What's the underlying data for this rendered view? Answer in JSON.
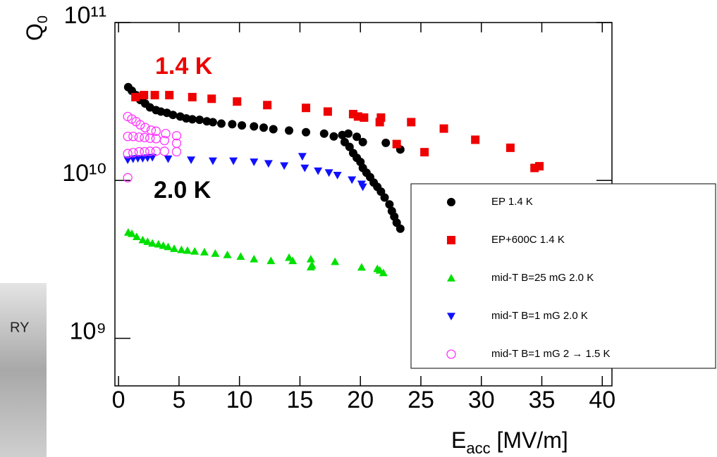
{
  "photo_text": "RY",
  "chart_data": {
    "type": "scatter",
    "x_label": {
      "main": "E",
      "sub": "acc",
      "unit": " [MV/m]"
    },
    "y_label": {
      "main": "Q",
      "sub": "0"
    },
    "annotations": [
      {
        "text": "1.4 K",
        "color": "#ee0000"
      },
      {
        "text": "2.0 K",
        "color": "#000000"
      }
    ],
    "log_y": true,
    "xlim": [
      -0.3,
      40.8
    ],
    "xticks": [
      0,
      5,
      10,
      15,
      20,
      25,
      30,
      35,
      40
    ],
    "ylim": [
      500000000,
      100000000000
    ],
    "yticks": [
      {
        "value": 1000000000,
        "label": "10⁹"
      },
      {
        "value": 10000000000,
        "label": "10¹⁰"
      },
      {
        "value": 100000000000,
        "label": "10¹¹"
      }
    ],
    "grid": false,
    "series": [
      {
        "name": "EP 1.4 K",
        "color": "#000000",
        "marker": "circle",
        "x": [
          0.8,
          1.1,
          1.45,
          1.8,
          2.2,
          2.6,
          3.1,
          3.5,
          4.0,
          4.5,
          5.1,
          5.6,
          6.1,
          6.7,
          7.3,
          7.8,
          8.5,
          9.4,
          10.2,
          11.2,
          12.0,
          12.8,
          14.1,
          15.5,
          17.0,
          17.8,
          18.5,
          19.0,
          19.7,
          20.2,
          18.7,
          19.1,
          19.4,
          19.7,
          20.0,
          20.2,
          20.5,
          20.8,
          21.1,
          21.4,
          21.7,
          22.0,
          22.4,
          22.6,
          22.8,
          23.0,
          23.3,
          22.1,
          23.3
        ],
        "values": [
          39000000000,
          37000000000,
          34700000000,
          32300000000,
          30700000000,
          29000000000,
          27900000000,
          27300000000,
          26800000000,
          26000000000,
          25400000000,
          24700000000,
          24400000000,
          24200000000,
          23700000000,
          23400000000,
          22900000000,
          22700000000,
          22300000000,
          22000000000,
          21600000000,
          21100000000,
          20700000000,
          20200000000,
          19800000000,
          19000000000,
          19400000000,
          19800000000,
          18900000000,
          17500000000,
          17500000000,
          16300000000,
          14900000000,
          13900000000,
          13100000000,
          12000000000,
          11200000000,
          10500000000,
          9700000000,
          9100000000,
          8500000000,
          7800000000,
          7050000000,
          6400000000,
          5900000000,
          5400000000,
          4950000000,
          17300000000,
          15700000000
        ]
      },
      {
        "name": "EP+600C 1.4 K",
        "color": "#ee0000",
        "marker": "square",
        "x": [
          1.4,
          2.1,
          3.0,
          4.2,
          6.1,
          7.7,
          9.8,
          12.3,
          15.5,
          17.3,
          19.4,
          19.8,
          20.3,
          21.7,
          21.6,
          24.2,
          23.0,
          26.9,
          25.3,
          29.5,
          32.4,
          34.4,
          34.8
        ],
        "values": [
          33700000000,
          34700000000,
          34700000000,
          34700000000,
          33700000000,
          32900000000,
          31600000000,
          30000000000,
          28800000000,
          27300000000,
          26300000000,
          25400000000,
          25000000000,
          25000000000,
          23400000000,
          23400000000,
          17000000000,
          21300000000,
          15100000000,
          18100000000,
          16100000000,
          12000000000,
          12300000000
        ]
      },
      {
        "name": "mid-T B=25 mG 2.0 K",
        "color": "#00e000",
        "marker": "triangle-up",
        "x": [
          0.8,
          1.1,
          1.5,
          2.0,
          2.4,
          2.8,
          3.3,
          3.7,
          4.1,
          4.6,
          5.2,
          5.7,
          6.3,
          7.1,
          8.0,
          9.0,
          10.1,
          11.2,
          12.6,
          14.1,
          14.4,
          15.9,
          16.0,
          15.9,
          17.9,
          20.1,
          21.4,
          21.6,
          21.9
        ],
        "values": [
          4690000000,
          4600000000,
          4400000000,
          4200000000,
          4100000000,
          4000000000,
          3950000000,
          3870000000,
          3800000000,
          3700000000,
          3640000000,
          3600000000,
          3560000000,
          3520000000,
          3450000000,
          3380000000,
          3300000000,
          3180000000,
          3100000000,
          3250000000,
          3100000000,
          3180000000,
          2900000000,
          2830000000,
          3060000000,
          2820000000,
          2760000000,
          2700000000,
          2600000000
        ]
      },
      {
        "name": "mid-T B=1 mG 2.0 K",
        "color": "#1010ff",
        "marker": "triangle-down",
        "x": [
          0.76,
          1.2,
          1.6,
          2.0,
          2.4,
          2.8,
          4.1,
          6.0,
          7.8,
          9.5,
          11.2,
          12.4,
          13.7,
          15.2,
          15.4,
          16.5,
          17.4,
          18.1,
          19.3,
          20.1,
          20.2
        ],
        "values": [
          13500000000,
          13700000000,
          13800000000,
          13800000000,
          13900000000,
          14000000000,
          13700000000,
          13500000000,
          13300000000,
          13300000000,
          13100000000,
          12800000000,
          12400000000,
          14200000000,
          12000000000,
          11500000000,
          11200000000,
          10800000000,
          10100000000,
          9500000000,
          9100000000
        ]
      },
      {
        "name": "mid-T B=1 mG 2 → 1.5 K",
        "color": "#ff33ff",
        "marker": "circle-open",
        "x": [
          0.76,
          1.1,
          1.45,
          1.8,
          2.2,
          2.7,
          3.1,
          3.9,
          4.8,
          0.76,
          1.2,
          1.7,
          2.15,
          2.6,
          3.1,
          3.8,
          4.8,
          0.76,
          1.2,
          1.7,
          2.15,
          2.6,
          3.1,
          3.8,
          4.8,
          0.76
        ],
        "values": [
          25400000000,
          24500000000,
          23600000000,
          22500000000,
          21600000000,
          20800000000,
          20500000000,
          19800000000,
          19200000000,
          19000000000,
          19000000000,
          18800000000,
          18700000000,
          18500000000,
          18400000000,
          17900000000,
          17200000000,
          14800000000,
          15000000000,
          15200000000,
          15200000000,
          15300000000,
          15300000000,
          15300000000,
          15200000000,
          10400000000
        ]
      }
    ]
  }
}
